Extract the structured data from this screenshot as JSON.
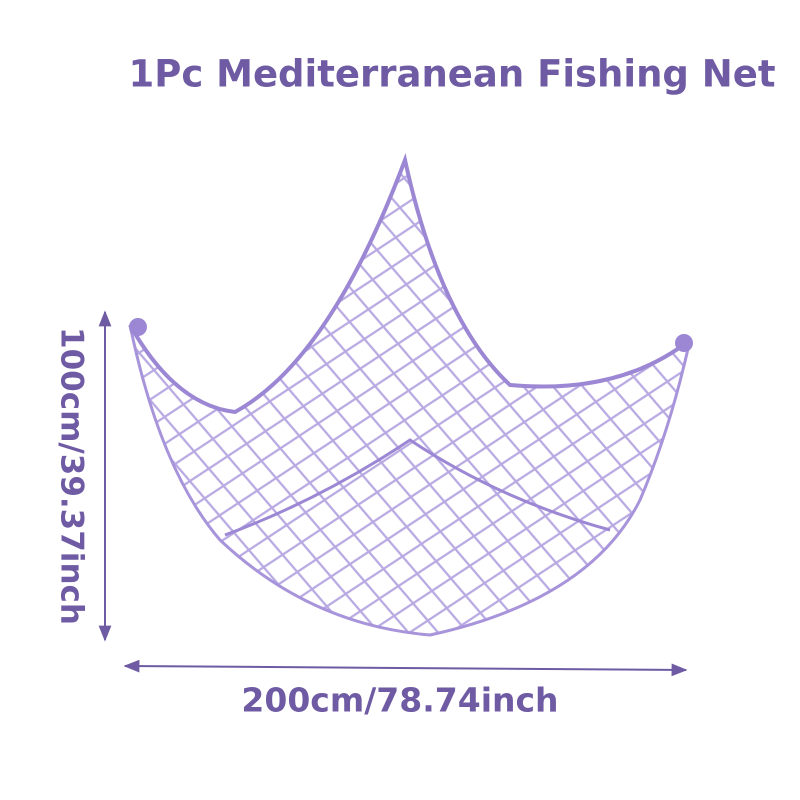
{
  "title": "1Pc Mediterranean Fishing Net",
  "width_label": "200cm/78.74inch",
  "height_label": "100cm/39.37inch"
}
